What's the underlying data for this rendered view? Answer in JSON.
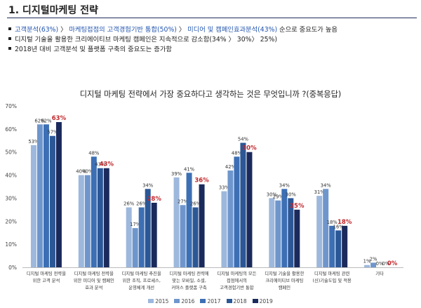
{
  "header": {
    "title": "1. 디지털마케팅 전략"
  },
  "bullets": [
    {
      "parts": [
        {
          "text": "고객분석(63%)",
          "hl": true
        },
        {
          "text": " 〉 ",
          "hl": false
        },
        {
          "text": "마케팅접점의 고객경험기반 통합(50%)",
          "hl": true
        },
        {
          "text": " 〉 ",
          "hl": false
        },
        {
          "text": "미디어 및 캠페인효과분석(43%)",
          "hl": true
        },
        {
          "text": " 순으로 중요도가 높음",
          "hl": false
        }
      ]
    },
    {
      "parts": [
        {
          "text": "디지털 기술을 활용한 크리에이티브 마케팅 캠페인은 지속적으로 감소함(34% 〉 30%〉 25%)",
          "hl": false
        }
      ]
    },
    {
      "parts": [
        {
          "text": "2018년 대비 고객분석 및 플랫폼 구축의 중요도는 증가함",
          "hl": false
        }
      ]
    }
  ],
  "chart_data": {
    "type": "bar",
    "title": "디지털 마케팅 전략에서 가장 중요하다고 생각하는 것은 무엇입니까 ?(중복응답)",
    "y_ticks": [
      "0%",
      "10%",
      "20%",
      "30%",
      "40%",
      "50%",
      "60%",
      "70%"
    ],
    "ylim": [
      0,
      70
    ],
    "categories": [
      [
        "디지털 마케팅 전략을",
        "위한 고객 분석"
      ],
      [
        "디지털 마케팅 전략을",
        "위한 미디어 및 캠페인",
        "효과 분석"
      ],
      [
        "디지털 마케팅 추진을",
        "위한 조직, 프로세스,",
        "운영체계 개선"
      ],
      [
        "디지털 마케팅 전략에",
        "맞는 모바일, 소셜,",
        "커머스 플랫폼 구축"
      ],
      [
        "디지털 마케팅의 모든",
        "접점에서의",
        "고객경험기반 통합"
      ],
      [
        "디지털 기술을 활용한",
        "크리에이티브 마케팅",
        "캠페인"
      ],
      [
        "디지털 마케팅 관련",
        "(신)기술도입 및 적용"
      ],
      [
        "기타"
      ]
    ],
    "series": [
      {
        "name": "2015",
        "color": "#9db8dc",
        "values": [
          53,
          40,
          26,
          39,
          33,
          30,
          31,
          1
        ]
      },
      {
        "name": "2016",
        "color": "#6f96cc",
        "values": [
          62,
          40,
          17,
          27,
          42,
          29,
          34,
          2
        ]
      },
      {
        "name": "2017",
        "color": "#3d6fb4",
        "values": [
          62,
          48,
          26,
          41,
          48,
          34,
          18,
          0
        ]
      },
      {
        "name": "2018",
        "color": "#2b5796",
        "values": [
          57,
          43,
          34,
          26,
          54,
          30,
          16,
          0
        ]
      },
      {
        "name": "2019",
        "color": "#1b2a5c",
        "values": [
          63,
          43,
          28,
          36,
          50,
          25,
          18,
          0
        ]
      }
    ],
    "value_labels": [
      [
        "53%",
        "62%",
        "62%",
        "57%",
        "63%"
      ],
      [
        "40%",
        "40%",
        "48%",
        "43%",
        "43%"
      ],
      [
        "26%",
        "17%",
        "26%",
        "34%",
        "28%"
      ],
      [
        "39%",
        "27%",
        "41%",
        "26%",
        "36%"
      ],
      [
        "33%",
        "42%",
        "48%",
        "54%",
        "50%"
      ],
      [
        "30%",
        "29%",
        "34%",
        "30%",
        "25%"
      ],
      [
        "31%",
        "34%",
        "18%",
        "16%",
        "18%"
      ],
      [
        "1%",
        "2%",
        "0%",
        "0%",
        "0%"
      ]
    ],
    "highlight_color": "#c0282d",
    "legend_position": "bottom"
  }
}
